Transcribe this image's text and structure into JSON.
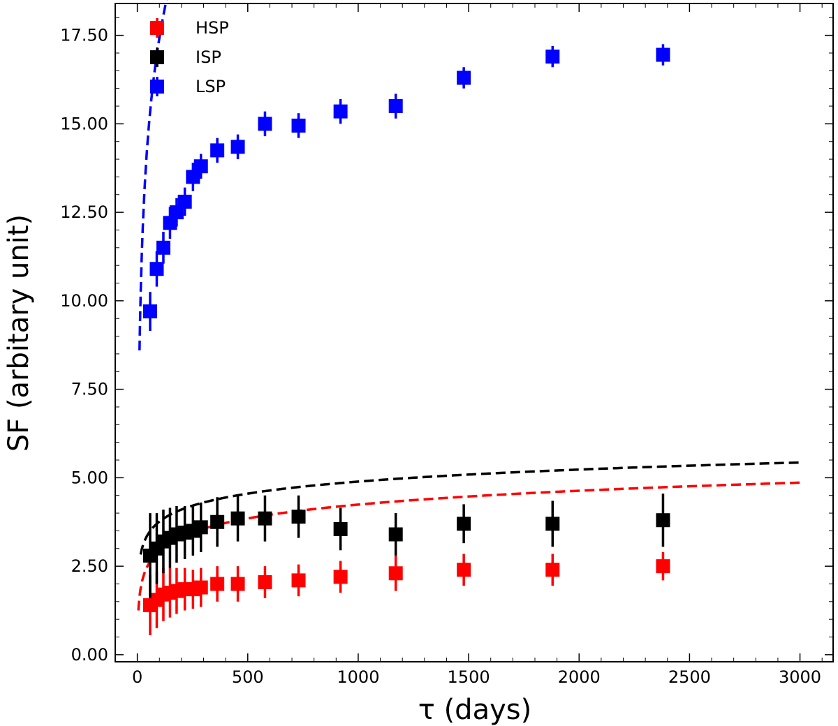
{
  "chart_data": {
    "type": "scatter",
    "title": "",
    "xlabel": "τ (days)",
    "ylabel": "SF (arbitary unit)",
    "xlim": [
      -100,
      3150
    ],
    "ylim": [
      -0.2,
      18.4
    ],
    "xticks": [
      0,
      500,
      1000,
      1500,
      2000,
      2500,
      3000
    ],
    "xtick_labels": [
      "0",
      "500",
      "1000",
      "1500",
      "2000",
      "2500",
      "3000"
    ],
    "yticks": [
      0,
      2.5,
      5,
      7.5,
      10,
      12.5,
      15,
      17.5
    ],
    "ytick_labels": [
      "0.00",
      "2.50",
      "5.00",
      "7.50",
      "10.00",
      "12.50",
      "15.00",
      "17.50"
    ],
    "legend_position": "top-left",
    "series": [
      {
        "name": "HSP",
        "color": "#ff0000",
        "x": [
          58,
          88,
          118,
          148,
          178,
          215,
          252,
          288,
          362,
          455,
          578,
          730,
          920,
          1170,
          1478,
          1880,
          2380
        ],
        "y": [
          1.4,
          1.55,
          1.7,
          1.75,
          1.8,
          1.85,
          1.85,
          1.9,
          2.0,
          2.0,
          2.05,
          2.1,
          2.2,
          2.3,
          2.4,
          2.4,
          2.5
        ],
        "yerr": [
          0.85,
          0.8,
          0.75,
          0.7,
          0.65,
          0.6,
          0.55,
          0.55,
          0.5,
          0.5,
          0.45,
          0.45,
          0.45,
          0.5,
          0.45,
          0.45,
          0.4
        ],
        "fit": {
          "a": 1.25,
          "b": 1.3,
          "tmin": 5,
          "tmax": 3000
        }
      },
      {
        "name": "ISP",
        "color": "#000000",
        "x": [
          58,
          88,
          118,
          148,
          178,
          215,
          252,
          288,
          362,
          455,
          578,
          730,
          920,
          1170,
          1478,
          1880,
          2380
        ],
        "y": [
          2.8,
          3.0,
          3.2,
          3.3,
          3.4,
          3.45,
          3.5,
          3.6,
          3.75,
          3.85,
          3.85,
          3.9,
          3.55,
          3.4,
          3.7,
          3.7,
          3.8
        ],
        "yerr": [
          1.2,
          1.0,
          0.9,
          0.85,
          0.8,
          0.75,
          0.7,
          0.7,
          0.7,
          0.65,
          0.65,
          0.6,
          0.6,
          0.6,
          0.55,
          0.65,
          0.75
        ],
        "fit": {
          "a": 2.83,
          "b": 1.13,
          "tmin": 15,
          "tmax": 3000
        }
      },
      {
        "name": "LSP",
        "color": "#0000ff",
        "x": [
          58,
          88,
          118,
          148,
          178,
          215,
          252,
          288,
          362,
          455,
          578,
          730,
          920,
          1170,
          1478,
          1880,
          2380
        ],
        "y": [
          9.7,
          10.9,
          11.5,
          12.2,
          12.5,
          12.8,
          13.5,
          13.8,
          14.25,
          14.35,
          15.0,
          14.95,
          15.35,
          15.5,
          16.3,
          16.9,
          16.95
        ],
        "yerr": [
          0.55,
          0.5,
          0.45,
          0.45,
          0.4,
          0.4,
          0.4,
          0.35,
          0.35,
          0.35,
          0.35,
          0.35,
          0.35,
          0.35,
          0.3,
          0.3,
          0.3
        ],
        "fit": {
          "a": 8.6,
          "b": 8.83,
          "tmin": 10,
          "tmax": 3000
        }
      }
    ]
  }
}
